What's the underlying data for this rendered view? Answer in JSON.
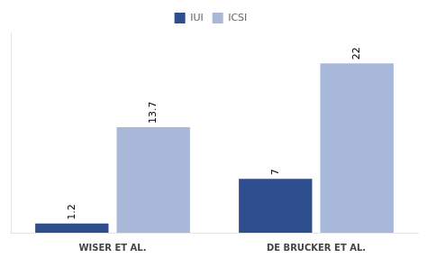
{
  "chart_data": {
    "type": "bar",
    "categories": [
      "WISER ET AL.",
      "DE BRUCKER ET AL."
    ],
    "series": [
      {
        "name": "IUI",
        "color": "#2E4E8E",
        "values": [
          1.2,
          7
        ]
      },
      {
        "name": "ICSI",
        "color": "#A8B8D8",
        "values": [
          13.7,
          22
        ]
      }
    ],
    "ylim": [
      0,
      26
    ],
    "yticks": [],
    "grid": false,
    "legend": "top",
    "data_labels": true,
    "tick_labels": "x"
  }
}
